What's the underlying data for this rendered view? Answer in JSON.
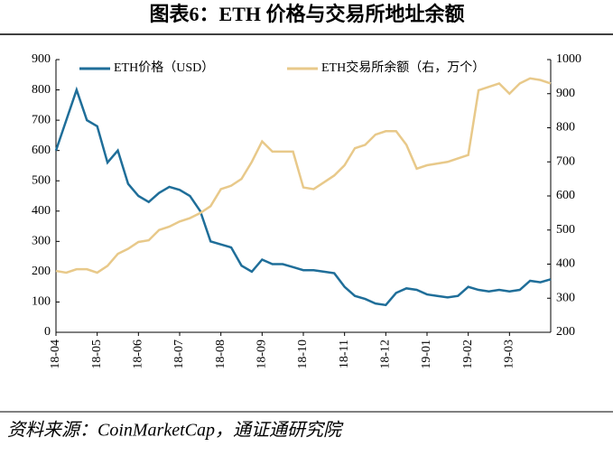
{
  "title": "图表6：ETH 价格与交易所地址余额",
  "source": "资料来源：CoinMarketCap，通证通研究院",
  "chart_data": {
    "type": "line",
    "xlim": [
      0,
      12
    ],
    "xticks": [
      {
        "value": 0,
        "label": "18-04"
      },
      {
        "value": 1,
        "label": "18-05"
      },
      {
        "value": 2,
        "label": "18-06"
      },
      {
        "value": 3,
        "label": "18-07"
      },
      {
        "value": 4,
        "label": "18-08"
      },
      {
        "value": 5,
        "label": "18-09"
      },
      {
        "value": 6,
        "label": "18-10"
      },
      {
        "value": 7,
        "label": "18-11"
      },
      {
        "value": 8,
        "label": "18-12"
      },
      {
        "value": 9,
        "label": "19-01"
      },
      {
        "value": 10,
        "label": "19-02"
      },
      {
        "value": 11,
        "label": "19-03"
      }
    ],
    "ylim": [
      0,
      900
    ],
    "yticks": [
      0,
      100,
      200,
      300,
      400,
      500,
      600,
      700,
      800,
      900
    ],
    "y2lim": [
      200,
      1000
    ],
    "y2ticks": [
      200,
      300,
      400,
      500,
      600,
      700,
      800,
      900,
      1000
    ],
    "x": [
      0,
      0.25,
      0.5,
      0.75,
      1,
      1.25,
      1.5,
      1.75,
      2,
      2.25,
      2.5,
      2.75,
      3,
      3.25,
      3.5,
      3.75,
      4,
      4.25,
      4.5,
      4.75,
      5,
      5.25,
      5.5,
      5.75,
      6,
      6.25,
      6.5,
      6.75,
      7,
      7.25,
      7.5,
      7.75,
      8,
      8.25,
      8.5,
      8.75,
      9,
      9.25,
      9.5,
      9.75,
      10,
      10.25,
      10.5,
      10.75,
      11,
      11.25,
      11.5,
      11.75,
      12
    ],
    "series": [
      {
        "name": "ETH价格（USD）",
        "color": "#1f6e99",
        "values": [
          600,
          700,
          800,
          700,
          680,
          560,
          600,
          490,
          450,
          430,
          460,
          480,
          470,
          450,
          400,
          300,
          290,
          280,
          220,
          200,
          240,
          225,
          225,
          215,
          205,
          205,
          200,
          195,
          150,
          120,
          110,
          95,
          90,
          130,
          145,
          140,
          125,
          120,
          115,
          120,
          150,
          140,
          135,
          140,
          135,
          140,
          170,
          165,
          175
        ]
      },
      {
        "name": "ETH交易所余额（右，万个）",
        "color": "#e8c98a",
        "axis": "y2",
        "values": [
          380,
          375,
          385,
          385,
          375,
          395,
          430,
          445,
          465,
          470,
          500,
          510,
          525,
          535,
          550,
          570,
          620,
          630,
          650,
          700,
          760,
          730,
          730,
          730,
          625,
          620,
          640,
          660,
          690,
          740,
          750,
          780,
          790,
          790,
          750,
          680,
          690,
          695,
          700,
          710,
          720,
          910,
          920,
          930,
          900,
          930,
          945,
          940,
          930
        ]
      }
    ]
  }
}
